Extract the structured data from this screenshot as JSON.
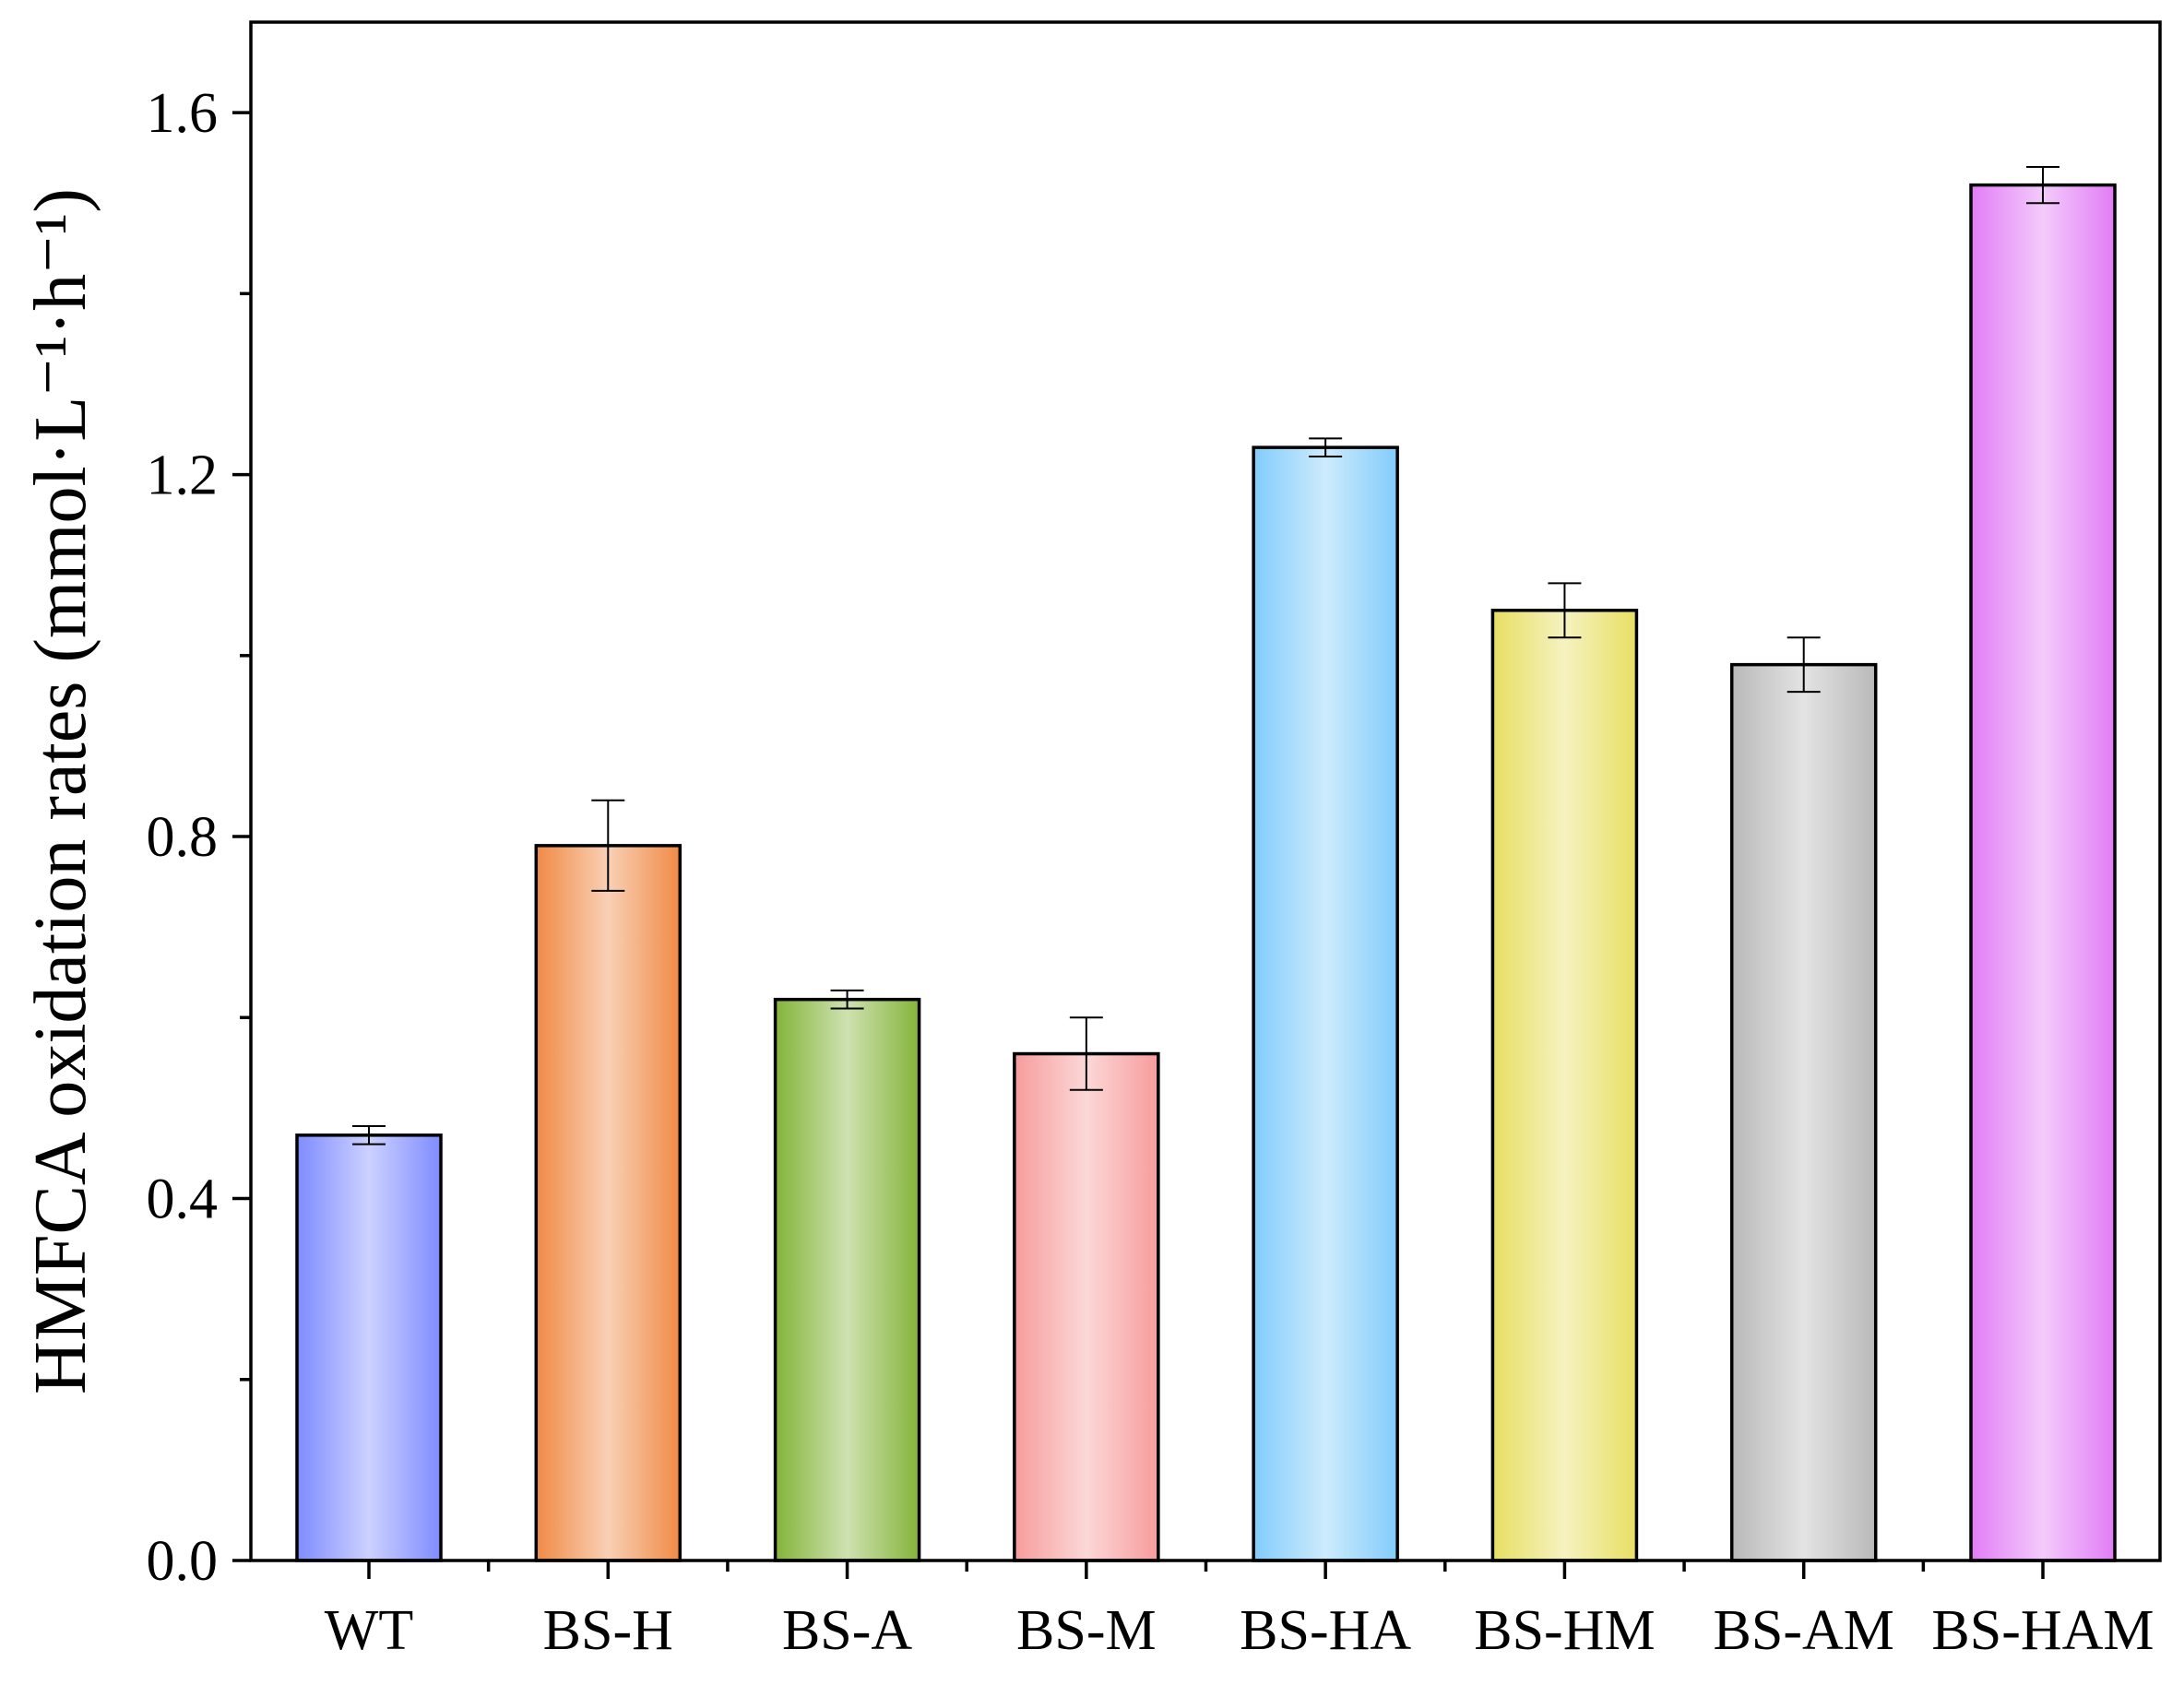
{
  "chart_data": {
    "type": "bar",
    "categories": [
      "WT",
      "BS-H",
      "BS-A",
      "BS-M",
      "BS-HA",
      "BS-HM",
      "BS-AM",
      "BS-HAM"
    ],
    "values": [
      0.47,
      0.79,
      0.62,
      0.56,
      1.23,
      1.05,
      0.99,
      1.52
    ],
    "errors": [
      0.01,
      0.05,
      0.01,
      0.04,
      0.01,
      0.03,
      0.03,
      0.02
    ],
    "colors": [
      "#7f8cff",
      "#f08a45",
      "#84b43a",
      "#f79c9c",
      "#82ccfb",
      "#e7df62",
      "#b9b9b9",
      "#e27cf6"
    ],
    "title": "",
    "xlabel": "",
    "ylabel": "HMFCA oxidation rates (mmol·L⁻¹·h⁻¹)",
    "ylim": [
      0,
      1.7
    ],
    "yticks": [
      0.0,
      0.4,
      0.8,
      1.2,
      1.6
    ],
    "ytick_labels": [
      "0.0",
      "0.4",
      "0.8",
      "1.2",
      "1.6"
    ],
    "grid": false,
    "legend": "none"
  }
}
